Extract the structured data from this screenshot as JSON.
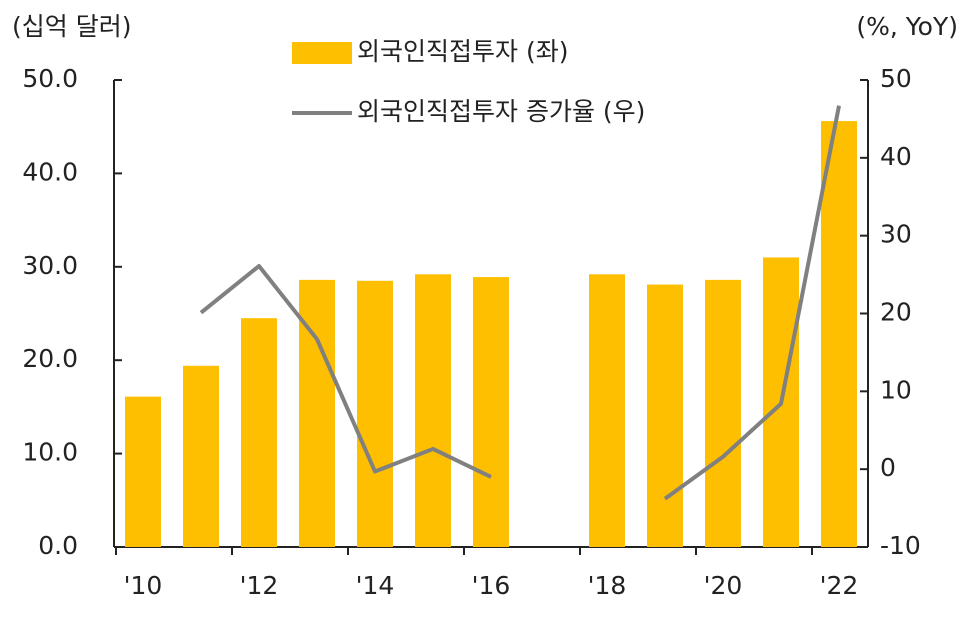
{
  "chart_data": {
    "type": "bar-line",
    "y_label": "(십억 달러)",
    "y2_label": "(%, YoY)",
    "categories": [
      "'10",
      null,
      "'12",
      null,
      "'14",
      null,
      "'16",
      null,
      "'18",
      null,
      "'20",
      null,
      "'22"
    ],
    "series": [
      {
        "name": "외국인직접투자 (좌)",
        "type": "bar",
        "color": "#fdbf00",
        "values": [
          16.1,
          19.4,
          24.5,
          28.6,
          28.5,
          29.2,
          28.9,
          null,
          29.2,
          28.1,
          28.6,
          31.0,
          45.6
        ]
      },
      {
        "name": "외국인직접투자 증가율 (우)",
        "type": "line",
        "axis": "y2",
        "color": "#808080",
        "values": [
          null,
          20.1,
          26.1,
          16.7,
          -0.3,
          2.6,
          -1.0,
          null,
          null,
          -3.8,
          1.6,
          8.4,
          46.7
        ]
      }
    ],
    "ylim": [
      0,
      50
    ],
    "yticks": [
      {
        "value": 0,
        "label": "0.0"
      },
      {
        "value": 10,
        "label": "10.0"
      },
      {
        "value": 20,
        "label": "20.0"
      },
      {
        "value": 30,
        "label": "30.0"
      },
      {
        "value": 40,
        "label": "40.0"
      },
      {
        "value": 50,
        "label": "50.0"
      }
    ],
    "y2lim": [
      -10,
      50
    ],
    "y2ticks": [
      -10,
      0,
      10,
      20,
      30,
      40,
      50
    ]
  }
}
